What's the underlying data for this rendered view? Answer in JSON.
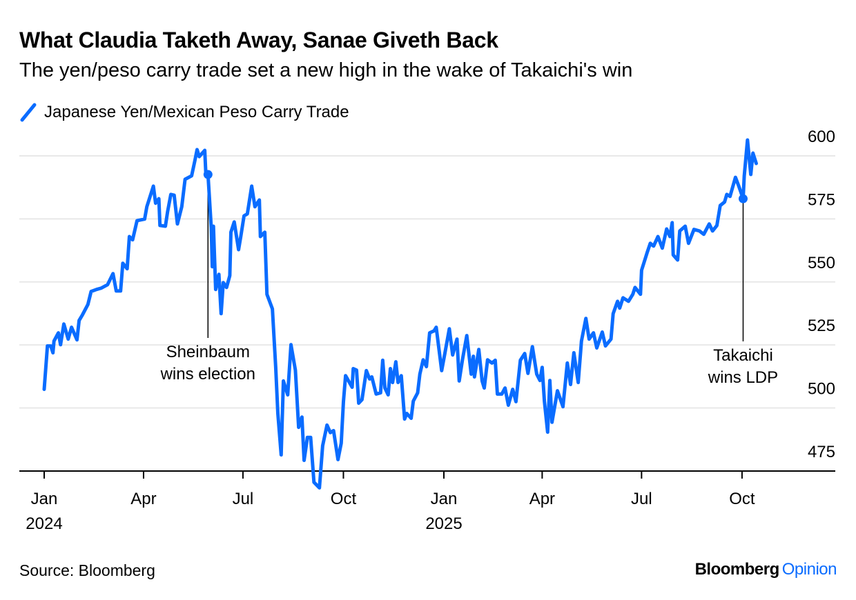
{
  "header": {
    "title": "What Claudia Taketh Away, Sanae Giveth Back",
    "subtitle": "The yen/peso carry trade set a new high in the wake of Takaichi's win"
  },
  "footer": {
    "source": "Source: Bloomberg",
    "logo_brand": "Bloomberg",
    "logo_product": "Opinion"
  },
  "colors": {
    "series": "#0a6cff",
    "grid": "#e8e8e8",
    "axis": "#000000"
  },
  "chart_data": {
    "type": "line",
    "title": "What Claudia Taketh Away, Sanae Giveth Back",
    "subtitle": "The yen/peso carry trade set a new high in the wake of Takaichi's win",
    "x_unit": "days since 2024-01-01",
    "xlabel": "",
    "ylabel": "",
    "ylim": [
      468,
      606
    ],
    "yticks": [
      475,
      500,
      525,
      550,
      575,
      600
    ],
    "ytick_labels": [
      "475",
      "500",
      "525",
      "550",
      "575",
      "600"
    ],
    "grid": true,
    "legend_position": "top-left",
    "xticks": [
      {
        "day": 0,
        "label": "Jan",
        "sublabel": "2024"
      },
      {
        "day": 91,
        "label": "Apr",
        "sublabel": ""
      },
      {
        "day": 182,
        "label": "Jul",
        "sublabel": ""
      },
      {
        "day": 274,
        "label": "Oct",
        "sublabel": ""
      },
      {
        "day": 366,
        "label": "Jan",
        "sublabel": "2025"
      },
      {
        "day": 456,
        "label": "Apr",
        "sublabel": ""
      },
      {
        "day": 547,
        "label": "Jul",
        "sublabel": ""
      },
      {
        "day": 639,
        "label": "Oct",
        "sublabel": ""
      }
    ],
    "series": [
      {
        "name": "Japanese Yen/Mexican Peso Carry Trade",
        "x": [
          0,
          3,
          6,
          8,
          9,
          13,
          15,
          18,
          22,
          25,
          30,
          32,
          35,
          40,
          43,
          48,
          52,
          58,
          63,
          66,
          70,
          72,
          76,
          78,
          81,
          85,
          92,
          94,
          100,
          102,
          105,
          106,
          111,
          113,
          116,
          119,
          122,
          126,
          129,
          135,
          138,
          140,
          142,
          147,
          148,
          150,
          153,
          154,
          155,
          157,
          160,
          162,
          164,
          167,
          170,
          171,
          174,
          178,
          180,
          183,
          186,
          190,
          193,
          197,
          198,
          202,
          204,
          209,
          212,
          214,
          217,
          219,
          223,
          226,
          230,
          233,
          236,
          238,
          241,
          244,
          247,
          252,
          255,
          259,
          262,
          265,
          269,
          272,
          274,
          276,
          282,
          283,
          286,
          288,
          291,
          295,
          298,
          300,
          304,
          308,
          310,
          312,
          315,
          317,
          319,
          322,
          324,
          327,
          330,
          332,
          336,
          338,
          342,
          344,
          347,
          350,
          353,
          357,
          359,
          364,
          367,
          371,
          374,
          378,
          380,
          383,
          387,
          391,
          393,
          394,
          398,
          401,
          403,
          406,
          410,
          413,
          415,
          419,
          422,
          425,
          429,
          432,
          436,
          440,
          443,
          447,
          451,
          454,
          456,
          458,
          461,
          463,
          465,
          470,
          475,
          479,
          482,
          485,
          489,
          492,
          496,
          499,
          503,
          506,
          511,
          514,
          519,
          521,
          525,
          527,
          530,
          535,
          539,
          541,
          546,
          547,
          552,
          555,
          558,
          562,
          566,
          570,
          573,
          575,
          576,
          580,
          582,
          587,
          590,
          595,
          600,
          604,
          609,
          612,
          616,
          619,
          623,
          625,
          628,
          633,
          636,
          640,
          641,
          644,
          647,
          649,
          652
        ],
        "values": [
          507.4,
          524.6,
          524.6,
          521.9,
          526.5,
          529.8,
          525.1,
          533.3,
          527.3,
          532,
          527,
          534.7,
          536.9,
          541,
          546.2,
          547,
          547.5,
          548.9,
          553.3,
          546.4,
          546.4,
          557.4,
          555.2,
          568,
          566.7,
          574.3,
          574.9,
          579.8,
          588,
          581.2,
          583,
          572.4,
          572.1,
          577.9,
          584.7,
          584.4,
          573,
          579.8,
          590.7,
          592.1,
          598.1,
          602.5,
          599.7,
          602.2,
          593.4,
          592.6,
          571.6,
          556,
          572.1,
          547,
          553,
          537.4,
          549.7,
          547.8,
          552.5,
          569.7,
          573.8,
          562.8,
          568,
          576.2,
          577,
          588,
          579.8,
          582.5,
          568,
          569.7,
          545.1,
          539.3,
          516.1,
          497.8,
          481.4,
          510.7,
          505.2,
          525.1,
          515,
          492.3,
          496.4,
          479.2,
          488.3,
          488.3,
          470.5,
          468.3,
          485,
          493.2,
          490.2,
          491,
          479.5,
          486,
          502.5,
          512.8,
          508.2,
          515.6,
          515,
          501.9,
          503.3,
          514.8,
          511.5,
          512.3,
          505.5,
          506,
          518.9,
          507.9,
          505.2,
          515.6,
          510.1,
          518.3,
          510.1,
          512.8,
          495.6,
          497.8,
          495.9,
          502.7,
          506,
          513.4,
          519.1,
          516.4,
          529.8,
          530.6,
          532,
          514.8,
          521.9,
          531.4,
          521,
          527.3,
          510.7,
          519.1,
          528.7,
          513.4,
          520.5,
          512.3,
          523.2,
          510.7,
          507.9,
          519.1,
          517.8,
          518.9,
          505.5,
          505.5,
          507.9,
          501.1,
          507.4,
          502.5,
          518.9,
          521.6,
          513.7,
          524.3,
          513.4,
          510.9,
          516.1,
          502.7,
          490.4,
          510.9,
          494.3,
          506.8,
          500.5,
          517.8,
          509.3,
          521.9,
          510.1,
          526.5,
          535.5,
          527.3,
          529.8,
          523.8,
          530.1,
          524.6,
          527.3,
          537.4,
          542.3,
          539.6,
          543.7,
          542.3,
          545.1,
          547.8,
          545.1,
          554.6,
          561.5,
          565.3,
          564.2,
          568,
          563.4,
          571,
          568,
          573.5,
          560.7,
          558.7,
          570.2,
          572.1,
          565.3,
          570.8,
          570.2,
          568.9,
          573,
          570.2,
          572.4,
          580.3,
          581.7,
          584.7,
          583.9,
          591.5,
          588,
          583,
          592,
          606.3,
          592.6,
          601.1,
          597
        ]
      }
    ],
    "annotations": [
      {
        "day": 150,
        "value": 592.6,
        "line1": "Sheinbaum",
        "line2": "wins election"
      },
      {
        "day": 640,
        "value": 583,
        "line1": "Takaichi",
        "line2": "wins LDP"
      }
    ]
  }
}
